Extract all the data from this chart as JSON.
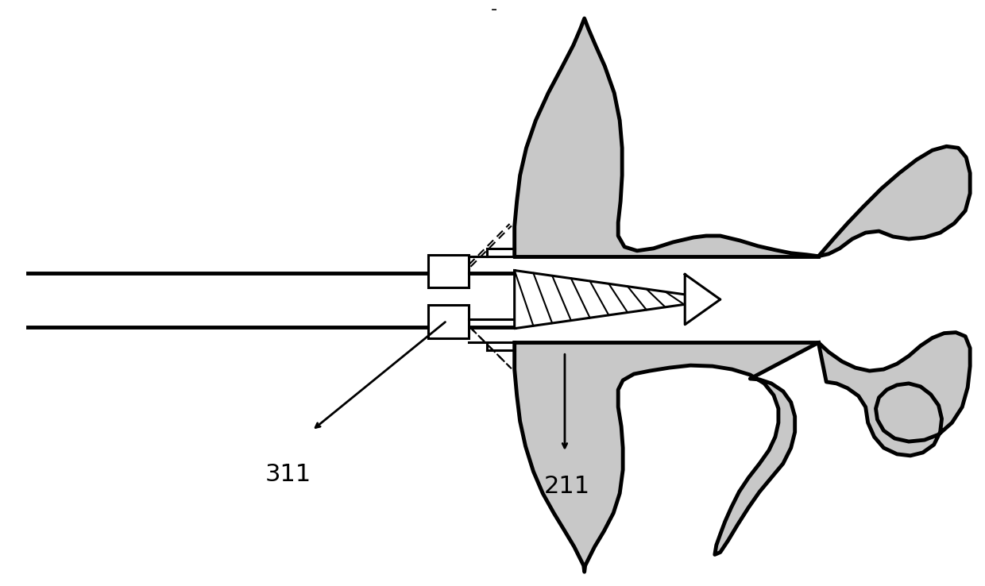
{
  "bg_color": "#ffffff",
  "line_color": "#000000",
  "stipple_color": "#b0b0b0",
  "label_311": "311",
  "label_211": "211",
  "title_marker": "-",
  "figsize": [
    12.4,
    7.38
  ],
  "dpi": 100,
  "lw_thick": 3.5,
  "lw_med": 2.5,
  "lw_thin": 1.5
}
